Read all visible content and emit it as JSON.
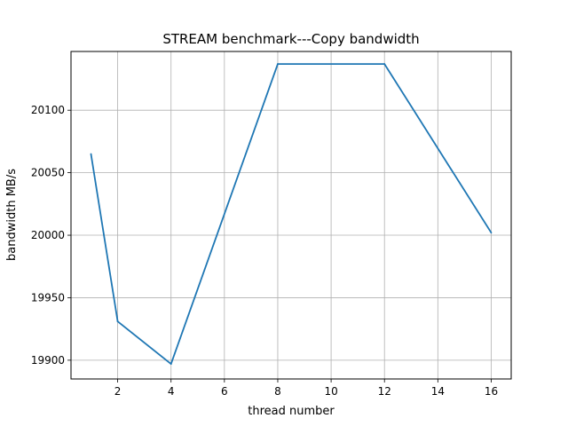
{
  "chart_data": {
    "type": "line",
    "title": "STREAM benchmark---Copy bandwidth",
    "xlabel": "thread number",
    "ylabel": "bandwidth MB/s",
    "x": [
      1,
      2,
      4,
      8,
      12,
      16
    ],
    "series": [
      {
        "values": [
          20065,
          19931,
          19897,
          20137,
          20137,
          20002
        ],
        "color": "#1f77b4"
      }
    ],
    "xlim": [
      0.25,
      16.75
    ],
    "ylim": [
      19885,
      20147
    ],
    "xticks": [
      2,
      4,
      6,
      8,
      10,
      12,
      14,
      16
    ],
    "yticks": [
      19900,
      19950,
      20000,
      20050,
      20100
    ],
    "grid": true,
    "legend": "none"
  }
}
